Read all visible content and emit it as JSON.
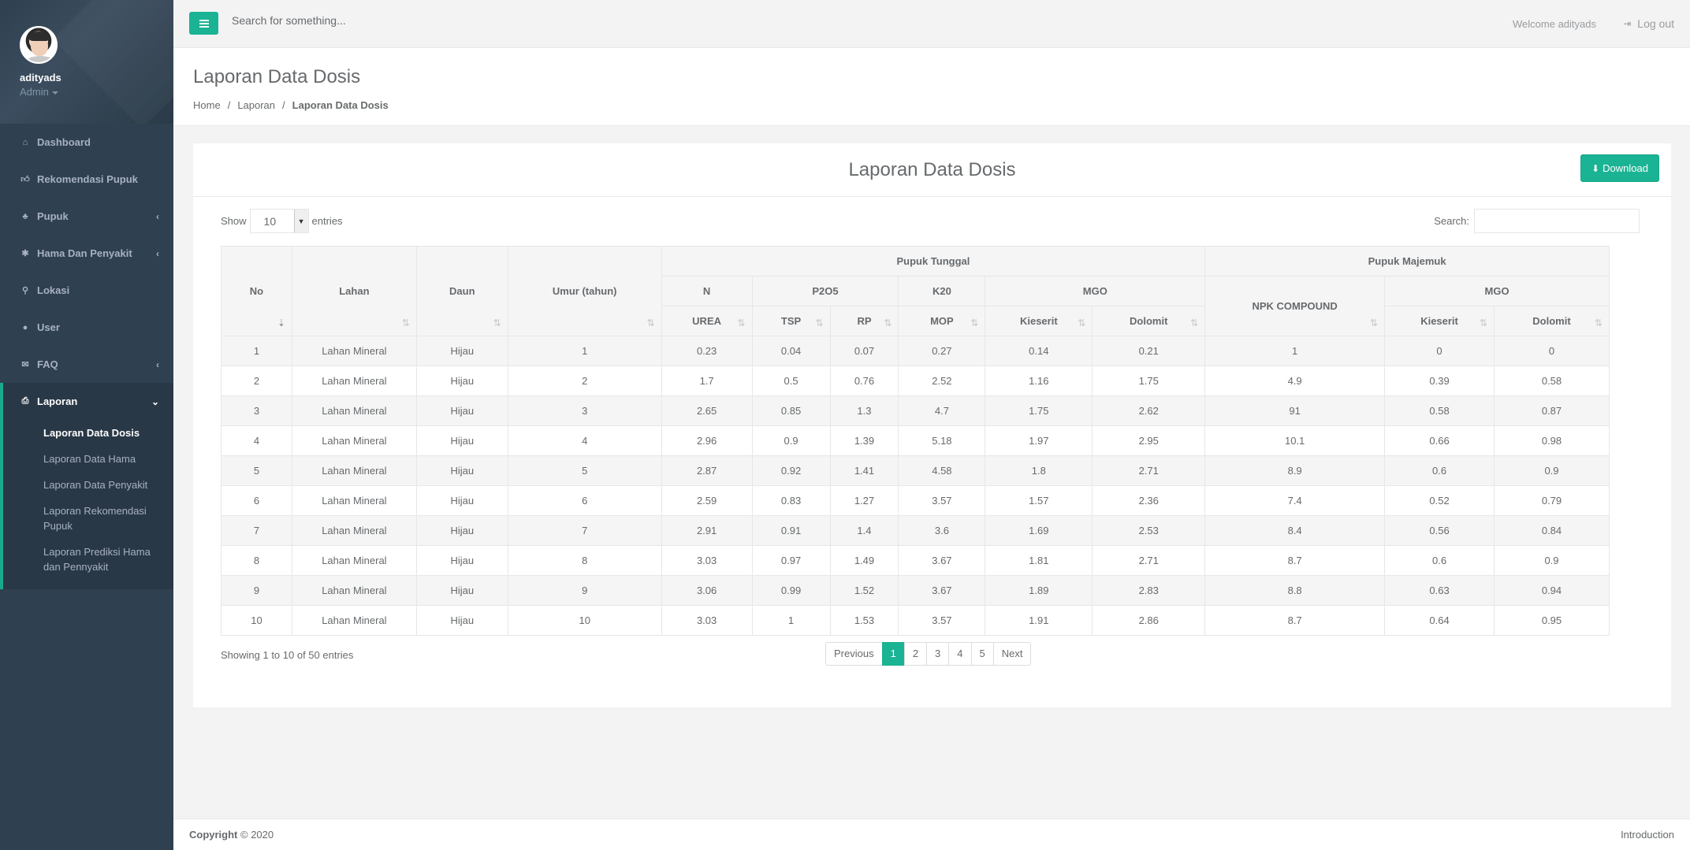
{
  "user": {
    "name": "adityads",
    "role": "Admin"
  },
  "sidebar": {
    "items": [
      {
        "label": "Dashboard",
        "icon": "home-icon",
        "glyph": "⌂"
      },
      {
        "label": "Rekomendasi Pupuk",
        "icon": "thumbs-up-icon",
        "glyph": "👍︎"
      },
      {
        "label": "Pupuk",
        "icon": "tree-icon",
        "glyph": "♣",
        "arrow": "‹"
      },
      {
        "label": "Hama Dan Penyakit",
        "icon": "bug-icon",
        "glyph": "✱",
        "arrow": "‹"
      },
      {
        "label": "Lokasi",
        "icon": "map-marker-icon",
        "glyph": "⚲"
      },
      {
        "label": "User",
        "icon": "user-icon",
        "glyph": "●"
      },
      {
        "label": "FAQ",
        "icon": "comments-icon",
        "glyph": "✉",
        "arrow": "‹"
      },
      {
        "label": "Laporan",
        "icon": "print-icon",
        "glyph": "⎙",
        "arrow": "⌄"
      }
    ],
    "sub_items": [
      "Laporan Data Dosis",
      "Laporan Data Hama",
      "Laporan Data Penyakit",
      "Laporan Rekomendasi Pupuk",
      "Laporan Prediksi Hama dan Pennyakit"
    ]
  },
  "topbar": {
    "search_placeholder": "Search for something...",
    "welcome": "Welcome adityads",
    "logout": "Log out"
  },
  "heading": {
    "title": "Laporan Data Dosis",
    "breadcrumb": [
      "Home",
      "Laporan",
      "Laporan Data Dosis"
    ]
  },
  "report": {
    "title": "Laporan Data Dosis",
    "download": "Download",
    "show_label": "Show",
    "entries_value": "10",
    "entries_label": "entries",
    "search_label": "Search:",
    "info": "Showing 1 to 10 of 50 entries",
    "pagination": [
      "Previous",
      "1",
      "2",
      "3",
      "4",
      "5",
      "Next"
    ]
  },
  "table": {
    "group_headers": {
      "tunggal": "Pupuk Tunggal",
      "majemuk": "Pupuk Majemuk"
    },
    "main_headers": {
      "no": "No",
      "lahan": "Lahan",
      "daun": "Daun",
      "umur": "Umur (tahun)"
    },
    "sub_headers": {
      "n": "N",
      "p2o5": "P2O5",
      "k20": "K20",
      "mgo": "MGO",
      "npk": "NPK COMPOUND",
      "mgo2": "MGO"
    },
    "leaf_headers": {
      "urea": "UREA",
      "tsp": "TSP",
      "rp": "RP",
      "mop": "MOP",
      "kieserit": "Kieserit",
      "dolomit": "Dolomit",
      "kieserit2": "Kieserit",
      "dolomit2": "Dolomit"
    },
    "rows": [
      [
        "1",
        "Lahan Mineral",
        "Hijau",
        "1",
        "0.23",
        "0.04",
        "0.07",
        "0.27",
        "0.14",
        "0.21",
        "1",
        "0",
        "0"
      ],
      [
        "2",
        "Lahan Mineral",
        "Hijau",
        "2",
        "1.7",
        "0.5",
        "0.76",
        "2.52",
        "1.16",
        "1.75",
        "4.9",
        "0.39",
        "0.58"
      ],
      [
        "3",
        "Lahan Mineral",
        "Hijau",
        "3",
        "2.65",
        "0.85",
        "1.3",
        "4.7",
        "1.75",
        "2.62",
        "91",
        "0.58",
        "0.87"
      ],
      [
        "4",
        "Lahan Mineral",
        "Hijau",
        "4",
        "2.96",
        "0.9",
        "1.39",
        "5.18",
        "1.97",
        "2.95",
        "10.1",
        "0.66",
        "0.98"
      ],
      [
        "5",
        "Lahan Mineral",
        "Hijau",
        "5",
        "2.87",
        "0.92",
        "1.41",
        "4.58",
        "1.8",
        "2.71",
        "8.9",
        "0.6",
        "0.9"
      ],
      [
        "6",
        "Lahan Mineral",
        "Hijau",
        "6",
        "2.59",
        "0.83",
        "1.27",
        "3.57",
        "1.57",
        "2.36",
        "7.4",
        "0.52",
        "0.79"
      ],
      [
        "7",
        "Lahan Mineral",
        "Hijau",
        "7",
        "2.91",
        "0.91",
        "1.4",
        "3.6",
        "1.69",
        "2.53",
        "8.4",
        "0.56",
        "0.84"
      ],
      [
        "8",
        "Lahan Mineral",
        "Hijau",
        "8",
        "3.03",
        "0.97",
        "1.49",
        "3.67",
        "1.81",
        "2.71",
        "8.7",
        "0.6",
        "0.9"
      ],
      [
        "9",
        "Lahan Mineral",
        "Hijau",
        "9",
        "3.06",
        "0.99",
        "1.52",
        "3.67",
        "1.89",
        "2.83",
        "8.8",
        "0.63",
        "0.94"
      ],
      [
        "10",
        "Lahan Mineral",
        "Hijau",
        "10",
        "3.03",
        "1",
        "1.53",
        "3.57",
        "1.91",
        "2.86",
        "8.7",
        "0.64",
        "0.95"
      ]
    ]
  },
  "footer": {
    "copyright_bold": "Copyright",
    "copyright_rest": "© 2020",
    "right": "Introduction"
  },
  "colors": {
    "accent": "#1ab394",
    "sidebar": "#2f4050"
  }
}
